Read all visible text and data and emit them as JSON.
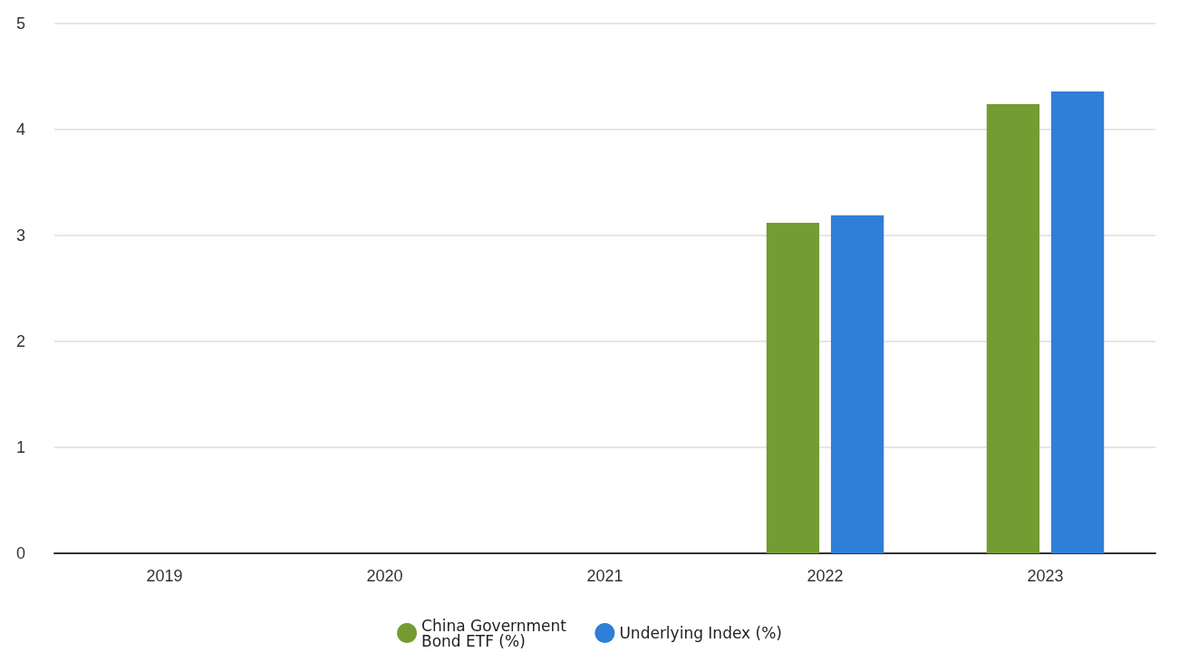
{
  "chart_data": {
    "type": "bar",
    "categories": [
      "2019",
      "2020",
      "2021",
      "2022",
      "2023"
    ],
    "series": [
      {
        "name": "China Government Bond ETF (%)",
        "color": "#739c33",
        "values": [
          null,
          null,
          null,
          3.12,
          4.24
        ]
      },
      {
        "name": "Underlying Index (%)",
        "color": "#2f7ed8",
        "values": [
          null,
          null,
          null,
          3.19,
          4.36
        ]
      }
    ],
    "ylim": [
      0,
      5
    ],
    "yticks": [
      0,
      1,
      2,
      3,
      4,
      5
    ],
    "grid": "y",
    "legend": "bottom"
  }
}
